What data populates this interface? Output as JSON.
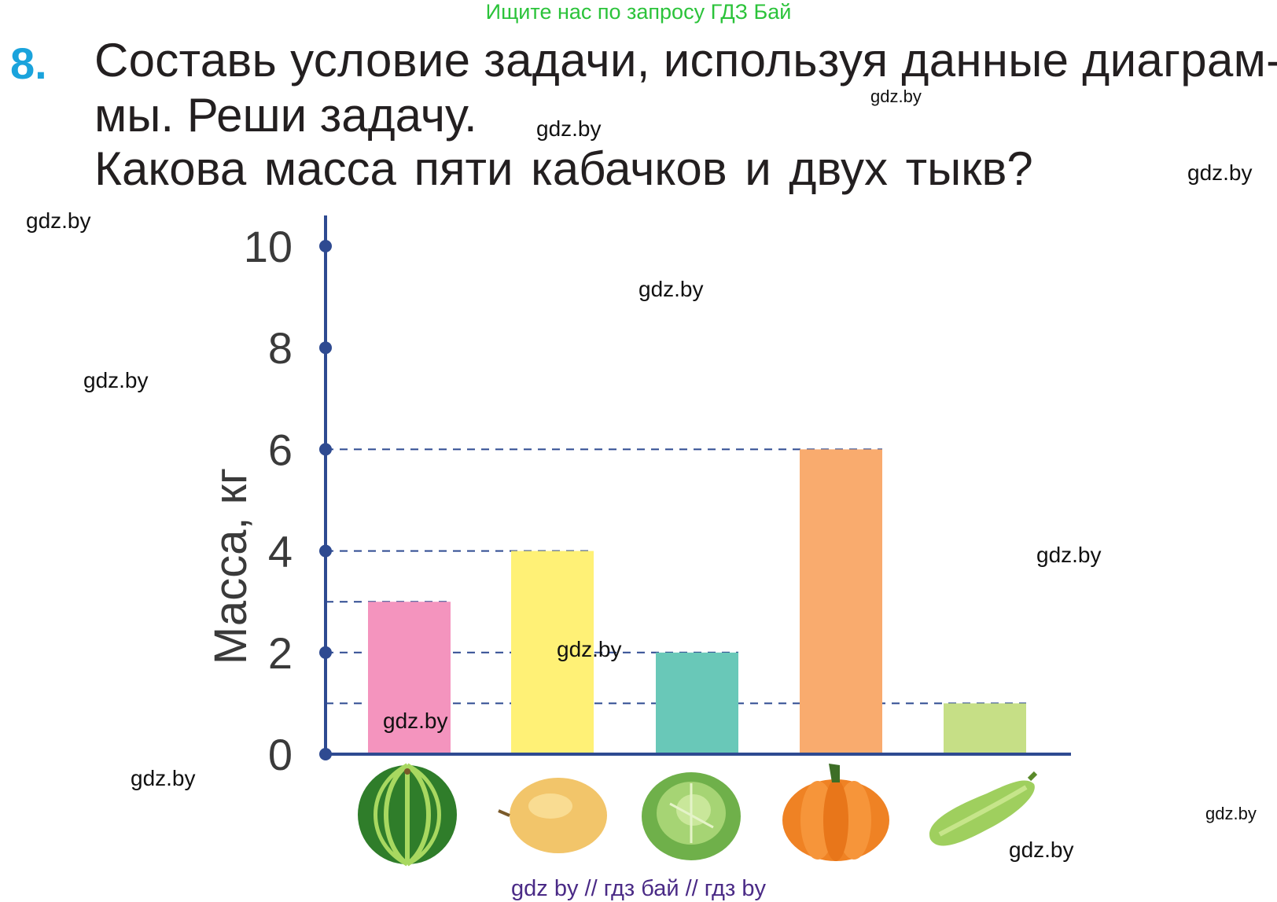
{
  "header": {
    "note": "Ищите нас по запросу ГДЗ Бай"
  },
  "task": {
    "number": "8.",
    "lines": [
      "Составь условие задачи, используя данные диаграм-",
      "мы. Реши задачу.",
      "Какова масса пяти кабачков и двух тыкв?"
    ]
  },
  "watermarks": [
    "gdz.by",
    "gdz.by",
    "gdz.by",
    "gdz.by",
    "gdz.by",
    "gdz.by",
    "gdz.by",
    "gdz.by",
    "gdz.by",
    "gdz.by",
    "gdz.by",
    "gdz.by"
  ],
  "footer": {
    "note": "gdz by  //  гдз бай  //  гдз by"
  },
  "colors": {
    "axis": "#2e4a91",
    "number": "#1aa3dc",
    "header_note": "#2bc33a",
    "footer_note": "#4a2a86"
  },
  "chart_data": {
    "type": "bar",
    "categories": [
      "watermelon",
      "melon",
      "cabbage",
      "pumpkin",
      "zucchini"
    ],
    "category_icons": [
      "watermelon-icon",
      "melon-icon",
      "cabbage-icon",
      "pumpkin-icon",
      "zucchini-icon"
    ],
    "values": [
      3,
      4,
      2,
      6,
      1
    ],
    "colors": [
      "#f494be",
      "#fff176",
      "#69c8b8",
      "#f9ab6e",
      "#c6df86"
    ],
    "ylabel": "Масса, кг",
    "yticks": [
      0,
      2,
      4,
      6,
      8,
      10
    ],
    "ylim": [
      0,
      10
    ],
    "guide_lines": true
  }
}
